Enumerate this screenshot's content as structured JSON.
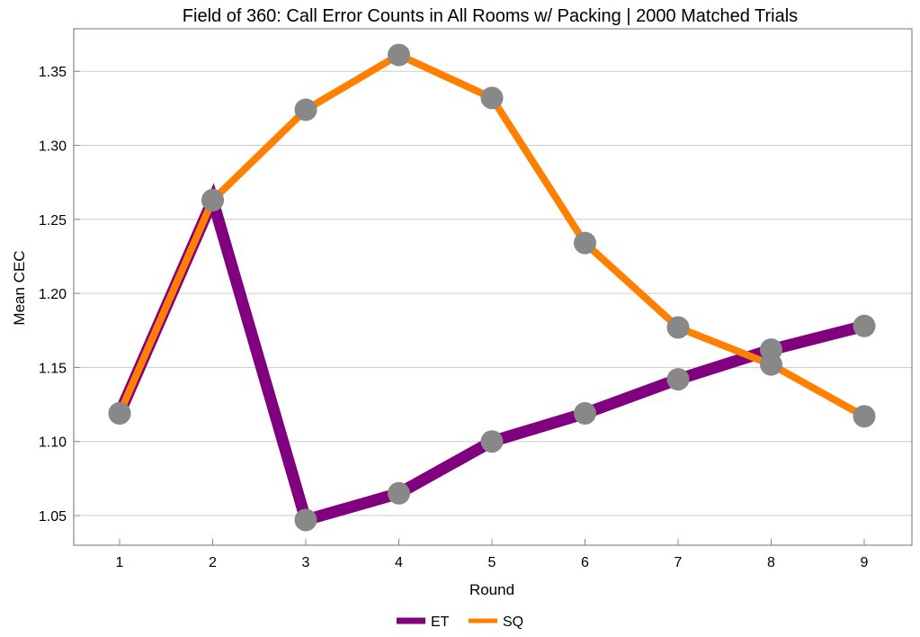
{
  "chart_data": {
    "type": "line",
    "title": "Field of 360: Call Error Counts in All Rooms w/ Packing | 2000 Matched Trials",
    "xlabel": "Round",
    "ylabel": "Mean CEC",
    "x": [
      1,
      2,
      3,
      4,
      5,
      6,
      7,
      8,
      9
    ],
    "xticks": [
      "1",
      "2",
      "3",
      "4",
      "5",
      "6",
      "7",
      "8",
      "9"
    ],
    "yticks": [
      "1.05",
      "1.10",
      "1.15",
      "1.20",
      "1.25",
      "1.30",
      "1.35"
    ],
    "ytick_values": [
      1.05,
      1.1,
      1.15,
      1.2,
      1.25,
      1.3,
      1.35
    ],
    "xlim": [
      0.5,
      9.5
    ],
    "ylim": [
      1.03,
      1.375
    ],
    "grid": "horizontal",
    "legend_position": "bottom-center",
    "marker_color": "#888888",
    "series": [
      {
        "name": "ET",
        "color": "#800080",
        "values": [
          1.119,
          1.263,
          1.047,
          1.065,
          1.1,
          1.119,
          1.142,
          1.162,
          1.178
        ]
      },
      {
        "name": "SQ",
        "color": "#FF8000",
        "values": [
          1.119,
          1.263,
          1.324,
          1.361,
          1.332,
          1.234,
          1.177,
          1.152,
          1.117
        ]
      }
    ]
  }
}
